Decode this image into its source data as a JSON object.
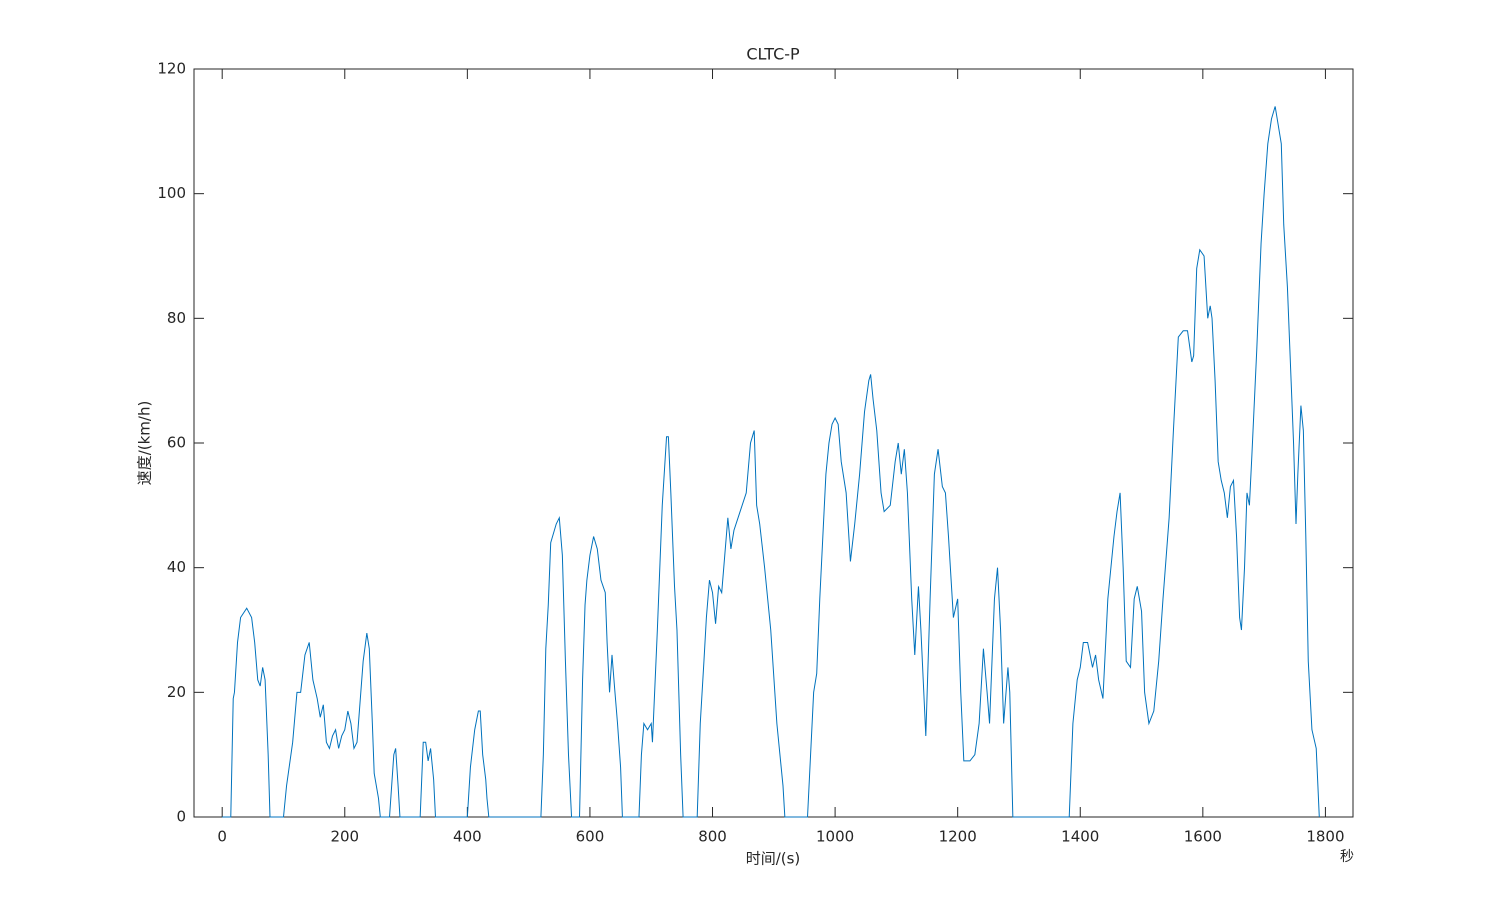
{
  "chart_data": {
    "type": "line",
    "title": "CLTC-P",
    "x_label": "时间/(s)",
    "y_label": "速度/(km/h)",
    "annotation": "秒",
    "xlim": [
      -46,
      1845
    ],
    "ylim": [
      0,
      120
    ],
    "xticks": [
      0,
      200,
      400,
      600,
      800,
      1000,
      1200,
      1400,
      1600,
      1800
    ],
    "yticks": [
      0,
      20,
      40,
      60,
      80,
      100,
      120
    ],
    "grid": false,
    "series": [
      {
        "color": "#0072BD",
        "x": [
          0,
          14,
          18,
          20,
          25,
          30,
          40,
          48,
          53,
          58,
          62,
          66,
          70,
          75,
          78,
          100,
          105,
          115,
          122,
          128,
          135,
          142,
          148,
          155,
          160,
          165,
          170,
          175,
          180,
          185,
          190,
          195,
          200,
          205,
          210,
          215,
          220,
          230,
          236,
          240,
          245,
          248,
          255,
          258,
          273,
          280,
          283,
          287,
          290,
          323,
          328,
          332,
          336,
          340,
          345,
          348,
          400,
          405,
          412,
          418,
          421,
          425,
          430,
          432,
          435,
          520,
          524,
          528,
          532,
          536,
          545,
          550,
          555,
          560,
          565,
          570,
          583,
          588,
          592,
          595,
          600,
          606,
          612,
          618,
          625,
          628,
          632,
          636,
          640,
          645,
          650,
          653,
          680,
          684,
          688,
          694,
          700,
          702,
          710,
          718,
          725,
          728,
          732,
          738,
          742,
          748,
          752,
          775,
          780,
          786,
          790,
          795,
          800,
          805,
          810,
          815,
          820,
          825,
          830,
          835,
          845,
          855,
          862,
          868,
          872,
          877,
          885,
          895,
          905,
          915,
          918,
          955,
          960,
          965,
          970,
          975,
          980,
          985,
          990,
          995,
          1000,
          1005,
          1010,
          1018,
          1025,
          1032,
          1040,
          1048,
          1055,
          1058,
          1062,
          1068,
          1075,
          1080,
          1090,
          1098,
          1103,
          1108,
          1113,
          1118,
          1125,
          1130,
          1136,
          1140,
          1148,
          1155,
          1162,
          1168,
          1175,
          1180,
          1185,
          1193,
          1200,
          1205,
          1210,
          1220,
          1228,
          1235,
          1242,
          1248,
          1252,
          1260,
          1265,
          1270,
          1275,
          1282,
          1285,
          1290,
          1382,
          1388,
          1395,
          1400,
          1405,
          1412,
          1420,
          1425,
          1430,
          1437,
          1445,
          1455,
          1460,
          1465,
          1470,
          1475,
          1482,
          1488,
          1493,
          1500,
          1505,
          1512,
          1520,
          1528,
          1535,
          1545,
          1552,
          1560,
          1568,
          1575,
          1582,
          1585,
          1590,
          1595,
          1602,
          1608,
          1612,
          1615,
          1620,
          1625,
          1630,
          1635,
          1640,
          1645,
          1650,
          1655,
          1660,
          1663,
          1668,
          1672,
          1676,
          1680,
          1688,
          1695,
          1700,
          1706,
          1712,
          1718,
          1723,
          1728,
          1732,
          1738,
          1742,
          1748,
          1752,
          1755,
          1760,
          1764,
          1768,
          1772,
          1778,
          1785,
          1790
        ],
        "values": [
          0,
          0,
          19,
          20,
          28,
          32,
          33.5,
          32,
          28,
          22,
          21,
          24,
          22,
          10,
          0,
          0,
          5,
          12,
          20,
          20,
          26,
          28,
          22,
          19,
          16,
          18,
          12,
          11,
          13,
          14,
          11,
          13,
          14,
          17,
          15,
          11,
          12,
          25,
          29.5,
          27,
          15,
          7,
          3,
          0,
          0,
          10,
          11,
          5,
          0,
          0,
          12,
          12,
          9,
          11,
          6,
          0,
          0,
          8,
          14,
          17,
          17,
          10,
          6,
          3,
          0,
          0,
          10,
          27,
          34,
          44,
          47,
          48,
          42,
          25,
          10,
          0,
          0,
          22,
          34,
          38,
          42,
          45,
          43,
          38,
          36,
          28,
          20,
          26,
          21,
          15,
          8,
          0,
          0,
          10,
          15,
          14,
          15,
          12,
          30,
          50,
          61,
          61,
          52,
          37,
          30,
          10,
          0,
          0,
          15,
          25,
          32,
          38,
          36,
          31,
          37,
          36,
          42,
          48,
          43,
          46,
          49,
          52,
          60,
          62,
          50,
          47,
          40,
          30,
          15,
          5,
          0,
          0,
          10,
          20,
          23,
          35,
          45,
          55,
          60,
          63,
          64,
          63,
          57,
          52,
          41,
          47,
          55,
          65,
          70,
          71,
          67,
          62,
          52,
          49,
          50,
          57,
          60,
          55,
          59,
          52,
          35,
          26,
          37,
          30,
          13,
          35,
          55,
          59,
          53,
          52,
          45,
          32,
          35,
          20,
          9,
          9,
          10,
          15,
          27,
          20,
          15,
          35,
          40,
          30,
          15,
          24,
          20,
          0,
          0,
          15,
          22,
          24,
          28,
          28,
          24,
          26,
          22,
          19,
          35,
          45,
          49,
          52,
          40,
          25,
          24,
          35,
          37,
          33,
          20,
          15,
          17,
          25,
          35,
          48,
          62,
          77,
          78,
          78,
          73,
          74,
          88,
          91,
          90,
          80,
          82,
          80,
          70,
          57,
          54,
          52,
          48,
          53,
          54,
          45,
          32,
          30,
          40,
          52,
          50,
          58,
          75,
          92,
          100,
          108,
          112,
          114,
          111,
          108,
          95,
          85,
          75,
          60,
          47,
          55,
          66,
          62,
          45,
          25,
          14,
          11,
          0
        ]
      }
    ]
  }
}
